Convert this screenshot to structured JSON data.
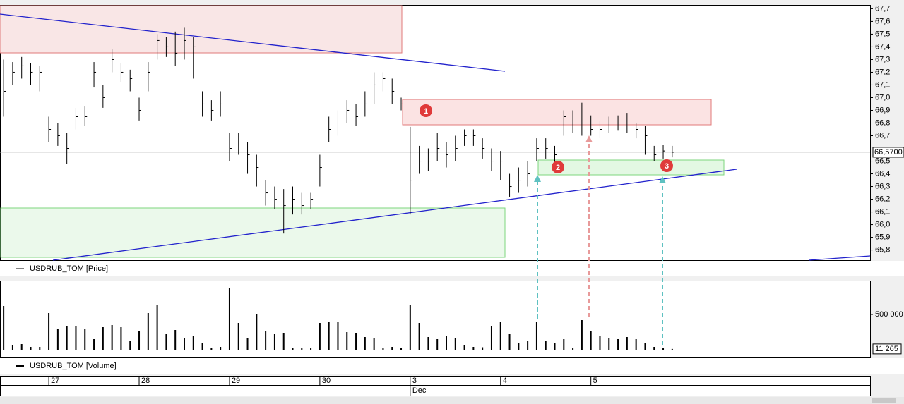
{
  "chart_data": {
    "type": "ohlc",
    "series_name": "USDRUB_TOM [Price]",
    "volume_name": "USDRUB_TOM [Volume]",
    "high": [
      67.3,
      67.28,
      67.32,
      67.27,
      67.25,
      66.85,
      66.8,
      66.72,
      66.92,
      66.93,
      67.28,
      67.1,
      67.38,
      67.27,
      67.22,
      67.0,
      67.28,
      67.5,
      67.48,
      67.52,
      67.55,
      67.48,
      67.05,
      66.98,
      67.05,
      66.72,
      66.72,
      66.65,
      66.55,
      66.35,
      66.3,
      66.28,
      66.3,
      66.25,
      66.25,
      66.55,
      66.85,
      66.9,
      66.98,
      66.95,
      67.05,
      67.2,
      67.2,
      67.15,
      67.0,
      66.77,
      66.62,
      66.6,
      66.72,
      66.65,
      66.7,
      66.75,
      66.75,
      66.68,
      66.6,
      66.58,
      66.4,
      66.45,
      66.5,
      66.68,
      66.68,
      66.62,
      66.9,
      66.9,
      66.96,
      66.86,
      66.82,
      66.85,
      66.86,
      66.88,
      66.8,
      66.78,
      66.62,
      66.63,
      66.62
    ],
    "low": [
      66.85,
      67.1,
      67.15,
      67.1,
      67.05,
      66.65,
      66.62,
      66.48,
      66.75,
      66.78,
      67.08,
      66.92,
      67.2,
      67.12,
      67.05,
      66.82,
      67.05,
      67.3,
      67.32,
      67.25,
      67.3,
      67.15,
      66.85,
      66.82,
      66.85,
      66.5,
      66.55,
      66.4,
      66.3,
      66.15,
      66.12,
      65.93,
      66.08,
      66.08,
      66.12,
      66.3,
      66.65,
      66.7,
      66.8,
      66.78,
      66.85,
      66.95,
      67.05,
      66.95,
      66.9,
      66.08,
      66.4,
      66.42,
      66.5,
      66.45,
      66.5,
      66.62,
      66.62,
      66.52,
      66.42,
      66.35,
      66.22,
      66.25,
      66.3,
      66.5,
      66.52,
      66.48,
      66.7,
      66.72,
      66.7,
      66.7,
      66.68,
      66.72,
      66.74,
      66.72,
      66.68,
      66.55,
      66.5,
      66.52,
      66.53
    ],
    "close": [
      67.05,
      67.2,
      67.25,
      67.2,
      67.2,
      66.75,
      66.7,
      66.6,
      66.85,
      66.85,
      67.2,
      67.0,
      67.3,
      67.2,
      67.15,
      66.9,
      67.2,
      67.45,
      67.4,
      67.35,
      67.45,
      67.4,
      66.95,
      66.9,
      66.95,
      66.6,
      66.65,
      66.55,
      66.45,
      66.25,
      66.2,
      66.15,
      66.2,
      66.15,
      66.2,
      66.45,
      66.75,
      66.8,
      66.9,
      66.85,
      66.95,
      67.1,
      67.15,
      67.05,
      66.95,
      66.35,
      66.5,
      66.5,
      66.6,
      66.55,
      66.6,
      66.7,
      66.7,
      66.6,
      66.5,
      66.5,
      66.3,
      66.35,
      66.4,
      66.6,
      66.6,
      66.55,
      66.85,
      66.8,
      66.8,
      66.75,
      66.75,
      66.8,
      66.8,
      66.8,
      66.75,
      66.7,
      66.55,
      66.58,
      66.57
    ],
    "volume": [
      620000,
      60000,
      80000,
      40000,
      40000,
      520000,
      300000,
      330000,
      340000,
      300000,
      150000,
      320000,
      350000,
      320000,
      120000,
      270000,
      520000,
      640000,
      220000,
      280000,
      170000,
      190000,
      100000,
      30000,
      40000,
      880000,
      380000,
      160000,
      500000,
      260000,
      220000,
      230000,
      30000,
      20000,
      25000,
      380000,
      400000,
      390000,
      250000,
      240000,
      180000,
      160000,
      30000,
      40000,
      30000,
      640000,
      380000,
      180000,
      150000,
      190000,
      170000,
      70000,
      40000,
      35000,
      330000,
      400000,
      220000,
      100000,
      120000,
      400000,
      130000,
      100000,
      150000,
      30000,
      420000,
      260000,
      200000,
      160000,
      150000,
      180000,
      150000,
      100000,
      40000,
      30000,
      11265
    ],
    "color": "#000000",
    "ylim": [
      65.72,
      67.73
    ],
    "yticks": [
      {
        "value": 65.8,
        "label": "65,8"
      },
      {
        "value": 65.9,
        "label": "65,9"
      },
      {
        "value": 66.0,
        "label": "66,0"
      },
      {
        "value": 66.1,
        "label": "66,1"
      },
      {
        "value": 66.2,
        "label": "66,2"
      },
      {
        "value": 66.3,
        "label": "66,3"
      },
      {
        "value": 66.4,
        "label": "66,4"
      },
      {
        "value": 66.5,
        "label": "66,5"
      },
      {
        "value": 66.7,
        "label": "66,7"
      },
      {
        "value": 66.8,
        "label": "66,8"
      },
      {
        "value": 66.9,
        "label": "66,9"
      },
      {
        "value": 67.0,
        "label": "67,0"
      },
      {
        "value": 67.1,
        "label": "67,1"
      },
      {
        "value": 67.2,
        "label": "67,2"
      },
      {
        "value": 67.3,
        "label": "67,3"
      },
      {
        "value": 67.4,
        "label": "67,4"
      },
      {
        "value": 67.5,
        "label": "67,5"
      },
      {
        "value": 67.6,
        "label": "67,6"
      },
      {
        "value": 67.7,
        "label": "67,7"
      }
    ],
    "last_price": {
      "value": 66.57,
      "label": "66,5700"
    },
    "y2lim": [
      -110000,
      980000
    ],
    "y2ticks": [
      {
        "value": 500000,
        "label": "500 000"
      }
    ],
    "last_volume": {
      "value": 11265,
      "label": "11 265"
    },
    "xlim": [
      -0.4,
      95.9
    ],
    "xticks": [
      {
        "value": 5,
        "label": "27"
      },
      {
        "value": 15,
        "label": "28"
      },
      {
        "value": 25,
        "label": "29"
      },
      {
        "value": 35,
        "label": "30"
      },
      {
        "value": 45,
        "label": "3"
      },
      {
        "value": 55,
        "label": "4"
      },
      {
        "value": 65,
        "label": "5"
      }
    ],
    "month_ticks": [
      {
        "value": 45,
        "label": "Dec"
      }
    ],
    "annotations": [
      "1",
      "2",
      "3"
    ]
  }
}
